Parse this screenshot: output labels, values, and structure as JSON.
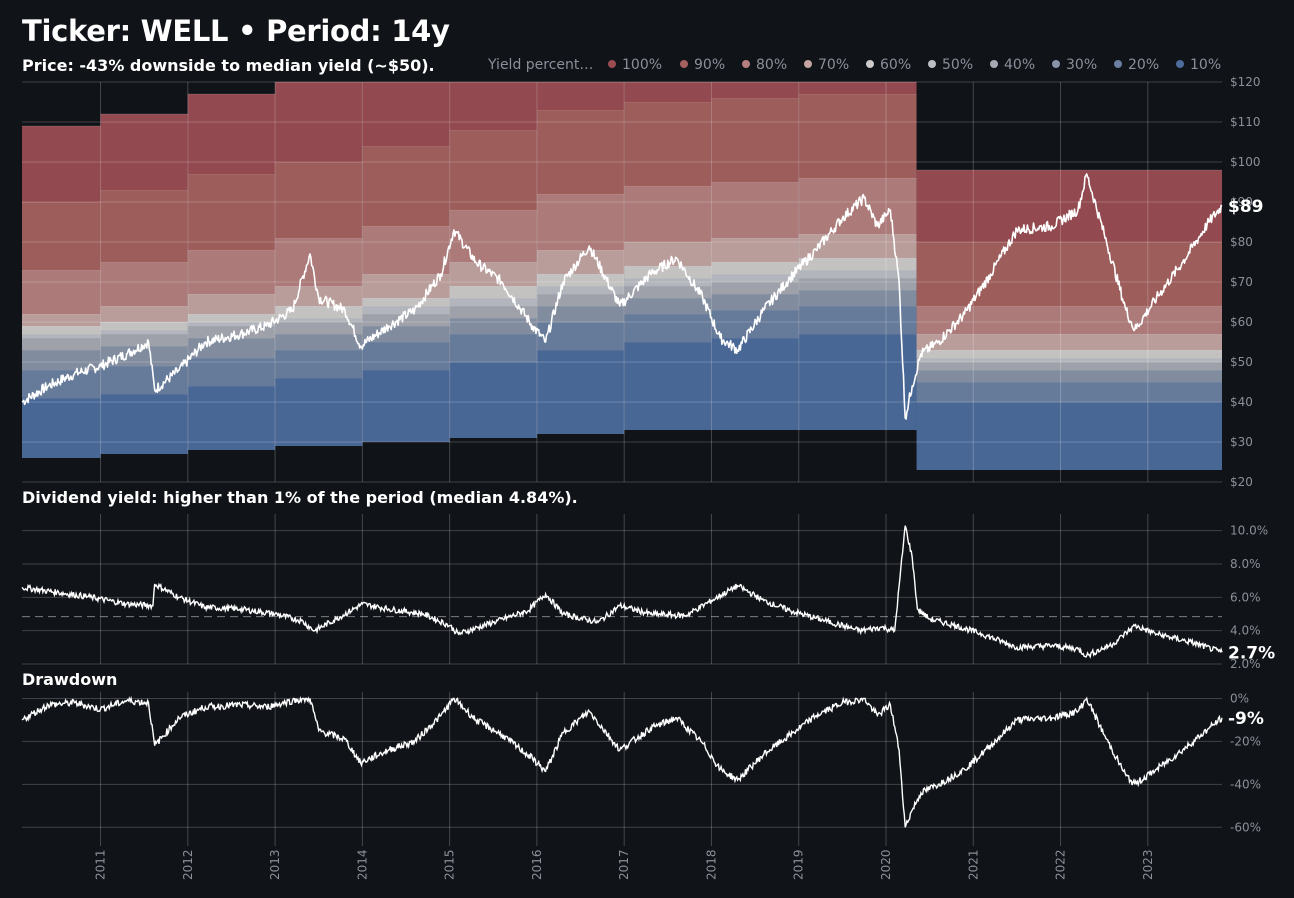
{
  "title": "Ticker: WELL • Period: 14y",
  "subtitle": "Price: -43% downside to median yield (~$50).",
  "yield_title": "Dividend yield: higher than 1% of the period (median 4.84%).",
  "drawdown_title": "Drawdown",
  "legend": {
    "title": "Yield percent…",
    "items": [
      {
        "label": "100%",
        "color": "#9a4c52"
      },
      {
        "label": "90%",
        "color": "#a4615f"
      },
      {
        "label": "80%",
        "color": "#b47f7e"
      },
      {
        "label": "70%",
        "color": "#c3a4a2"
      },
      {
        "label": "60%",
        "color": "#cfcaca"
      },
      {
        "label": "50%",
        "color": "#bcbec4"
      },
      {
        "label": "40%",
        "color": "#a6a9b2"
      },
      {
        "label": "30%",
        "color": "#8893a7"
      },
      {
        "label": "20%",
        "color": "#6b7fa0"
      },
      {
        "label": "10%",
        "color": "#4d6c9c"
      }
    ]
  },
  "chart_data": [
    {
      "type": "area",
      "panel": "price",
      "x_ticks": [
        "2011",
        "2012",
        "2013",
        "2014",
        "2015",
        "2016",
        "2017",
        "2018",
        "2019",
        "2020",
        "2021",
        "2022",
        "2023"
      ],
      "y_ticks": [
        "$120",
        "$110",
        "$100",
        "$90",
        "$80",
        "$70",
        "$60",
        "$50",
        "$40",
        "$30",
        "$20"
      ],
      "ylim": [
        20,
        120
      ],
      "xlim": [
        2010.1,
        2023.85
      ],
      "end_label": "$89",
      "price_series": [
        [
          2010.1,
          40
        ],
        [
          2010.4,
          44
        ],
        [
          2010.7,
          47
        ],
        [
          2011.0,
          49
        ],
        [
          2011.3,
          52
        ],
        [
          2011.55,
          55
        ],
        [
          2011.62,
          43
        ],
        [
          2011.9,
          48
        ],
        [
          2012.2,
          55
        ],
        [
          2012.6,
          57
        ],
        [
          2012.9,
          59
        ],
        [
          2013.2,
          63
        ],
        [
          2013.4,
          77
        ],
        [
          2013.5,
          66
        ],
        [
          2013.8,
          63
        ],
        [
          2013.98,
          54
        ],
        [
          2014.3,
          59
        ],
        [
          2014.6,
          63
        ],
        [
          2014.9,
          72
        ],
        [
          2015.05,
          83
        ],
        [
          2015.3,
          75
        ],
        [
          2015.6,
          70
        ],
        [
          2015.95,
          59
        ],
        [
          2016.1,
          55
        ],
        [
          2016.3,
          70
        ],
        [
          2016.6,
          79
        ],
        [
          2016.95,
          64
        ],
        [
          2017.3,
          72
        ],
        [
          2017.6,
          76
        ],
        [
          2017.9,
          66
        ],
        [
          2018.1,
          56
        ],
        [
          2018.3,
          53
        ],
        [
          2018.6,
          63
        ],
        [
          2018.9,
          71
        ],
        [
          2019.2,
          78
        ],
        [
          2019.5,
          86
        ],
        [
          2019.75,
          91
        ],
        [
          2019.9,
          84
        ],
        [
          2020.05,
          88
        ],
        [
          2020.15,
          70
        ],
        [
          2020.22,
          36
        ],
        [
          2020.3,
          44
        ],
        [
          2020.4,
          52
        ],
        [
          2020.6,
          55
        ],
        [
          2020.9,
          62
        ],
        [
          2021.2,
          72
        ],
        [
          2021.5,
          83
        ],
        [
          2021.9,
          84
        ],
        [
          2022.2,
          88
        ],
        [
          2022.3,
          97
        ],
        [
          2022.5,
          82
        ],
        [
          2022.75,
          63
        ],
        [
          2022.85,
          58
        ],
        [
          2023.1,
          66
        ],
        [
          2023.4,
          75
        ],
        [
          2023.7,
          85
        ],
        [
          2023.85,
          89
        ]
      ],
      "yield_bands_by_year": [
        {
          "start": 2010.1,
          "end": 2011.0,
          "p0": 26,
          "p10": 41,
          "p20": 48,
          "p30": 53,
          "p40": 56,
          "p50": 57,
          "p60": 59,
          "p70": 62,
          "p80": 73,
          "p90": 90,
          "p100": 109
        },
        {
          "start": 2011.0,
          "end": 2012.0,
          "p0": 27,
          "p10": 42,
          "p20": 49,
          "p30": 54,
          "p40": 57,
          "p50": 58,
          "p60": 60,
          "p70": 64,
          "p80": 75,
          "p90": 93,
          "p100": 112
        },
        {
          "start": 2012.0,
          "end": 2013.0,
          "p0": 28,
          "p10": 44,
          "p20": 51,
          "p30": 56,
          "p40": 59,
          "p50": 60,
          "p60": 62,
          "p70": 67,
          "p80": 78,
          "p90": 97,
          "p100": 117
        },
        {
          "start": 2013.0,
          "end": 2014.0,
          "p0": 29,
          "p10": 46,
          "p20": 53,
          "p30": 57,
          "p40": 60,
          "p50": 61,
          "p60": 64,
          "p70": 69,
          "p80": 81,
          "p90": 100,
          "p100": 120
        },
        {
          "start": 2014.0,
          "end": 2015.0,
          "p0": 30,
          "p10": 48,
          "p20": 55,
          "p30": 59,
          "p40": 62,
          "p50": 64,
          "p60": 66,
          "p70": 72,
          "p80": 84,
          "p90": 104,
          "p100": 120
        },
        {
          "start": 2015.0,
          "end": 2016.0,
          "p0": 31,
          "p10": 50,
          "p20": 57,
          "p30": 61,
          "p40": 64,
          "p50": 66,
          "p60": 69,
          "p70": 75,
          "p80": 88,
          "p90": 108,
          "p100": 120
        },
        {
          "start": 2016.0,
          "end": 2017.0,
          "p0": 32,
          "p10": 53,
          "p20": 60,
          "p30": 64,
          "p40": 67,
          "p50": 69,
          "p60": 72,
          "p70": 78,
          "p80": 92,
          "p90": 113,
          "p100": 120
        },
        {
          "start": 2017.0,
          "end": 2018.0,
          "p0": 33,
          "p10": 55,
          "p20": 62,
          "p30": 66,
          "p40": 69,
          "p50": 71,
          "p60": 74,
          "p70": 80,
          "p80": 94,
          "p90": 115,
          "p100": 120
        },
        {
          "start": 2018.0,
          "end": 2019.0,
          "p0": 33,
          "p10": 56,
          "p20": 63,
          "p30": 67,
          "p40": 70,
          "p50": 72,
          "p60": 75,
          "p70": 81,
          "p80": 95,
          "p90": 116,
          "p100": 120
        },
        {
          "start": 2019.0,
          "end": 2020.35,
          "p0": 33,
          "p10": 57,
          "p20": 64,
          "p30": 68,
          "p40": 71,
          "p50": 73,
          "p60": 76,
          "p70": 82,
          "p80": 96,
          "p90": 117,
          "p100": 120
        },
        {
          "start": 2020.35,
          "end": 2023.85,
          "p0": 23,
          "p10": 40,
          "p20": 45,
          "p30": 48,
          "p40": 50,
          "p50": 51,
          "p60": 53,
          "p70": 57,
          "p80": 64,
          "p90": 80,
          "p100": 98
        }
      ]
    },
    {
      "type": "line",
      "panel": "dividend_yield",
      "y_ticks": [
        "10.0%",
        "8.0%",
        "6.0%",
        "4.0%",
        "2.0%"
      ],
      "ylim": [
        2.0,
        11.0
      ],
      "median": 4.84,
      "end_label": "2.7%",
      "series": [
        [
          2010.1,
          6.6
        ],
        [
          2010.5,
          6.3
        ],
        [
          2010.9,
          6.0
        ],
        [
          2011.3,
          5.6
        ],
        [
          2011.6,
          5.5
        ],
        [
          2011.62,
          6.8
        ],
        [
          2011.9,
          6.0
        ],
        [
          2012.2,
          5.4
        ],
        [
          2012.6,
          5.3
        ],
        [
          2013.0,
          5.0
        ],
        [
          2013.3,
          4.6
        ],
        [
          2013.45,
          4.0
        ],
        [
          2013.7,
          4.7
        ],
        [
          2014.0,
          5.6
        ],
        [
          2014.3,
          5.3
        ],
        [
          2014.7,
          5.0
        ],
        [
          2015.0,
          4.3
        ],
        [
          2015.1,
          3.8
        ],
        [
          2015.5,
          4.5
        ],
        [
          2015.9,
          5.2
        ],
        [
          2016.1,
          6.2
        ],
        [
          2016.3,
          5.0
        ],
        [
          2016.7,
          4.5
        ],
        [
          2016.95,
          5.5
        ],
        [
          2017.3,
          5.0
        ],
        [
          2017.7,
          4.9
        ],
        [
          2018.0,
          5.8
        ],
        [
          2018.3,
          6.7
        ],
        [
          2018.6,
          5.8
        ],
        [
          2018.9,
          5.2
        ],
        [
          2019.3,
          4.6
        ],
        [
          2019.7,
          4.0
        ],
        [
          2019.95,
          4.2
        ],
        [
          2020.1,
          4.0
        ],
        [
          2020.22,
          10.3
        ],
        [
          2020.3,
          8.4
        ],
        [
          2020.36,
          5.3
        ],
        [
          2020.5,
          4.7
        ],
        [
          2020.8,
          4.3
        ],
        [
          2021.1,
          3.8
        ],
        [
          2021.5,
          3.0
        ],
        [
          2021.9,
          3.1
        ],
        [
          2022.2,
          2.9
        ],
        [
          2022.3,
          2.5
        ],
        [
          2022.6,
          3.2
        ],
        [
          2022.85,
          4.3
        ],
        [
          2023.1,
          3.8
        ],
        [
          2023.5,
          3.3
        ],
        [
          2023.85,
          2.7
        ]
      ]
    },
    {
      "type": "line",
      "panel": "drawdown",
      "y_ticks": [
        "0%",
        "-20%",
        "-40%",
        "-60%"
      ],
      "ylim": [
        -65,
        3
      ],
      "end_label": "-9%",
      "series": [
        [
          2010.1,
          -10
        ],
        [
          2010.4,
          -3
        ],
        [
          2010.7,
          -2
        ],
        [
          2011.0,
          -5
        ],
        [
          2011.3,
          -1
        ],
        [
          2011.55,
          -2
        ],
        [
          2011.62,
          -22
        ],
        [
          2011.9,
          -9
        ],
        [
          2012.2,
          -4
        ],
        [
          2012.6,
          -3
        ],
        [
          2012.9,
          -4
        ],
        [
          2013.2,
          -1
        ],
        [
          2013.4,
          0
        ],
        [
          2013.5,
          -15
        ],
        [
          2013.8,
          -19
        ],
        [
          2013.98,
          -30
        ],
        [
          2014.3,
          -24
        ],
        [
          2014.6,
          -20
        ],
        [
          2014.9,
          -8
        ],
        [
          2015.05,
          0
        ],
        [
          2015.3,
          -10
        ],
        [
          2015.6,
          -17
        ],
        [
          2015.95,
          -28
        ],
        [
          2016.1,
          -34
        ],
        [
          2016.3,
          -16
        ],
        [
          2016.6,
          -6
        ],
        [
          2016.95,
          -24
        ],
        [
          2017.3,
          -14
        ],
        [
          2017.6,
          -9
        ],
        [
          2017.9,
          -21
        ],
        [
          2018.1,
          -33
        ],
        [
          2018.3,
          -38
        ],
        [
          2018.6,
          -26
        ],
        [
          2018.9,
          -17
        ],
        [
          2019.2,
          -8
        ],
        [
          2019.5,
          -2
        ],
        [
          2019.75,
          0
        ],
        [
          2019.9,
          -8
        ],
        [
          2020.05,
          -3
        ],
        [
          2020.15,
          -24
        ],
        [
          2020.22,
          -60
        ],
        [
          2020.3,
          -52
        ],
        [
          2020.4,
          -44
        ],
        [
          2020.6,
          -40
        ],
        [
          2020.9,
          -33
        ],
        [
          2021.2,
          -22
        ],
        [
          2021.5,
          -10
        ],
        [
          2021.9,
          -9
        ],
        [
          2022.2,
          -6
        ],
        [
          2022.3,
          0
        ],
        [
          2022.5,
          -17
        ],
        [
          2022.75,
          -36
        ],
        [
          2022.85,
          -40
        ],
        [
          2023.1,
          -33
        ],
        [
          2023.4,
          -24
        ],
        [
          2023.7,
          -14
        ],
        [
          2023.85,
          -9
        ]
      ]
    }
  ]
}
